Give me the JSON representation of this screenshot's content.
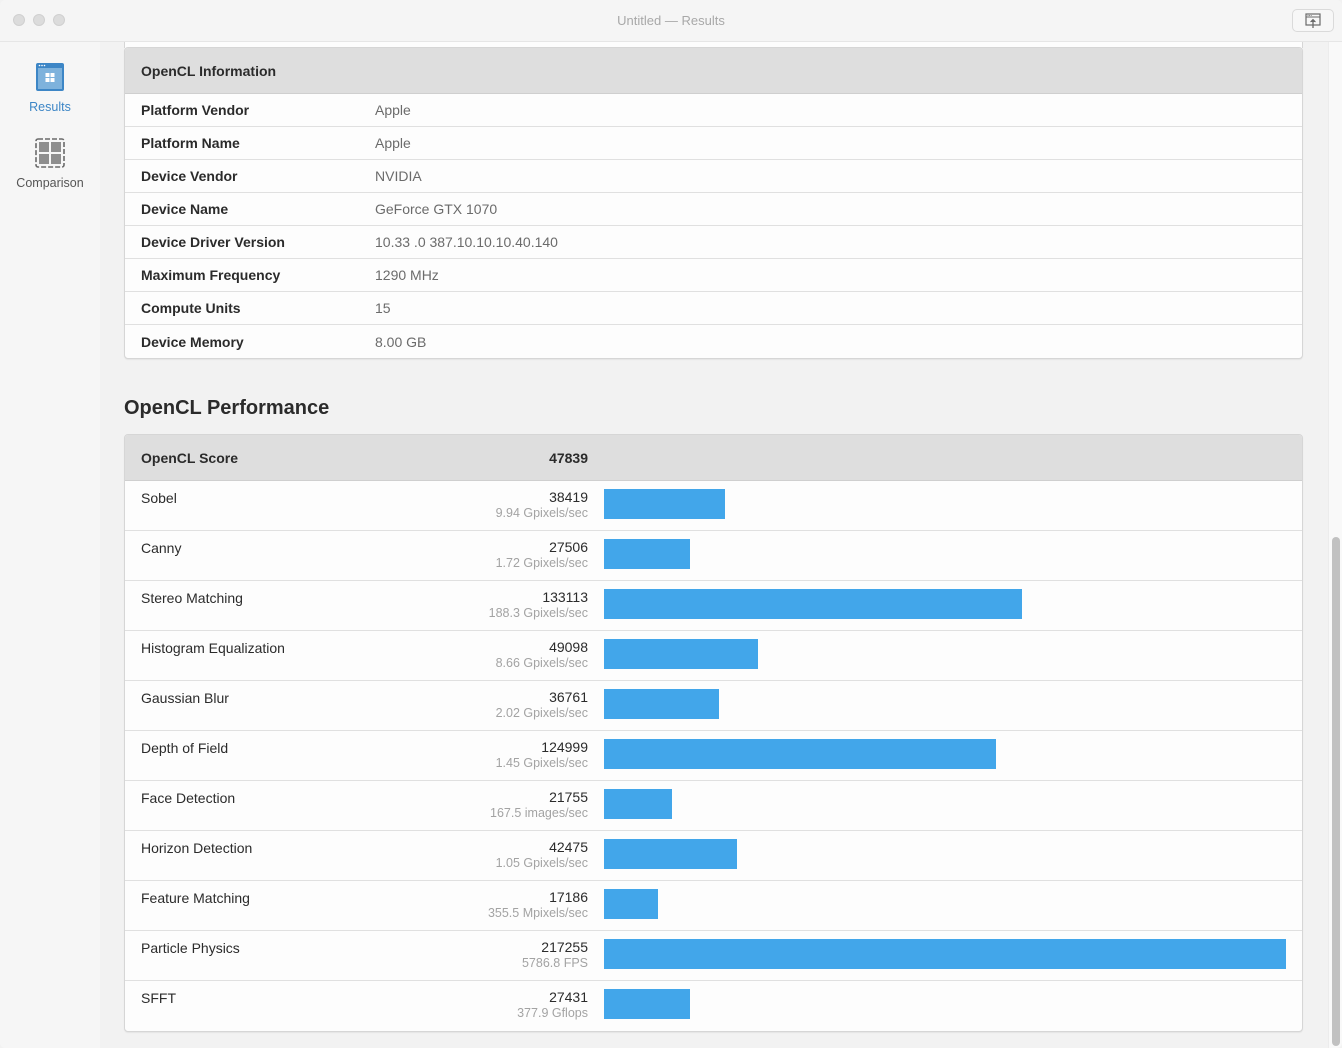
{
  "window": {
    "title": "Untitled — Results",
    "share_icon": "share-icon"
  },
  "sidebar": {
    "items": [
      {
        "label": "Results",
        "icon": "results-icon",
        "active": true
      },
      {
        "label": "Comparison",
        "icon": "comparison-icon",
        "active": false
      }
    ]
  },
  "info": {
    "header": "OpenCL Information",
    "rows": [
      {
        "key": "Platform Vendor",
        "value": "Apple"
      },
      {
        "key": "Platform Name",
        "value": "Apple"
      },
      {
        "key": "Device Vendor",
        "value": "NVIDIA"
      },
      {
        "key": "Device Name",
        "value": "GeForce GTX 1070"
      },
      {
        "key": "Device Driver Version",
        "value": "10.33 .0 387.10.10.10.40.140"
      },
      {
        "key": "Maximum Frequency",
        "value": "1290 MHz"
      },
      {
        "key": "Compute Units",
        "value": "15"
      },
      {
        "key": "Device Memory",
        "value": "8.00 GB"
      }
    ]
  },
  "performance": {
    "title": "OpenCL Performance",
    "score_label": "OpenCL Score",
    "score_value": "47839",
    "bar_color": "#42a6ea"
  },
  "chart_data": {
    "type": "bar",
    "orientation": "horizontal",
    "title": "OpenCL Performance",
    "categories": [
      "Sobel",
      "Canny",
      "Stereo Matching",
      "Histogram Equalization",
      "Gaussian Blur",
      "Depth of Field",
      "Face Detection",
      "Horizon Detection",
      "Feature Matching",
      "Particle Physics",
      "SFFT"
    ],
    "values": [
      38419,
      27506,
      133113,
      49098,
      36761,
      124999,
      21755,
      42475,
      17186,
      217255,
      27431
    ],
    "rates": [
      "9.94 Gpixels/sec",
      "1.72 Gpixels/sec",
      "188.3 Gpixels/sec",
      "8.66 Gpixels/sec",
      "2.02 Gpixels/sec",
      "1.45 Gpixels/sec",
      "167.5 images/sec",
      "1.05 Gpixels/sec",
      "355.5 Mpixels/sec",
      "5786.8 FPS",
      "377.9 Gflops"
    ],
    "xlim": [
      0,
      217255
    ],
    "grid": false,
    "legend": "none"
  }
}
